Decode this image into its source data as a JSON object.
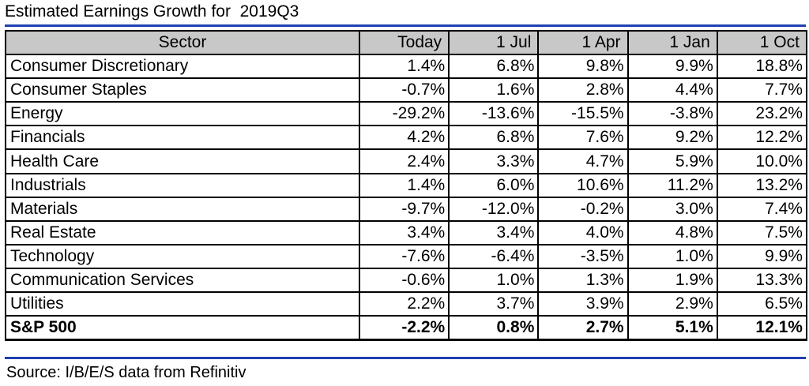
{
  "title": "Estimated Earnings Growth for  2019Q3",
  "source": "Source: I/B/E/S data from Refinitiv",
  "colors": {
    "rule": "#1f3fb0",
    "header_bg": "#c8c8c8"
  },
  "chart_data": {
    "type": "table",
    "title": "Estimated Earnings Growth for  2019Q3",
    "columns": [
      "Sector",
      "Today",
      "1 Jul",
      "1 Apr",
      "1 Jan",
      "1 Oct"
    ],
    "rows": [
      {
        "sector": "Consumer Discretionary",
        "values": [
          "1.4%",
          "6.8%",
          "9.8%",
          "9.9%",
          "18.8%"
        ]
      },
      {
        "sector": "Consumer Staples",
        "values": [
          "-0.7%",
          "1.6%",
          "2.8%",
          "4.4%",
          "7.7%"
        ]
      },
      {
        "sector": "Energy",
        "values": [
          "-29.2%",
          "-13.6%",
          "-15.5%",
          "-3.8%",
          "23.2%"
        ]
      },
      {
        "sector": "Financials",
        "values": [
          "4.2%",
          "6.8%",
          "7.6%",
          "9.2%",
          "12.2%"
        ]
      },
      {
        "sector": "Health Care",
        "values": [
          "2.4%",
          "3.3%",
          "4.7%",
          "5.9%",
          "10.0%"
        ]
      },
      {
        "sector": "Industrials",
        "values": [
          "1.4%",
          "6.0%",
          "10.6%",
          "11.2%",
          "13.2%"
        ]
      },
      {
        "sector": "Materials",
        "values": [
          "-9.7%",
          "-12.0%",
          "-0.2%",
          "3.0%",
          "7.4%"
        ]
      },
      {
        "sector": "Real Estate",
        "values": [
          "3.4%",
          "3.4%",
          "4.0%",
          "4.8%",
          "7.5%"
        ]
      },
      {
        "sector": "Technology",
        "values": [
          "-7.6%",
          "-6.4%",
          "-3.5%",
          "1.0%",
          "9.9%"
        ]
      },
      {
        "sector": "Communication Services",
        "values": [
          "-0.6%",
          "1.0%",
          "1.3%",
          "1.9%",
          "13.3%"
        ]
      },
      {
        "sector": "Utilities",
        "values": [
          "2.2%",
          "3.7%",
          "3.9%",
          "2.9%",
          "6.5%"
        ]
      }
    ],
    "total": {
      "sector": "S&P 500",
      "values": [
        "-2.2%",
        "0.8%",
        "2.7%",
        "5.1%",
        "12.1%"
      ]
    }
  }
}
